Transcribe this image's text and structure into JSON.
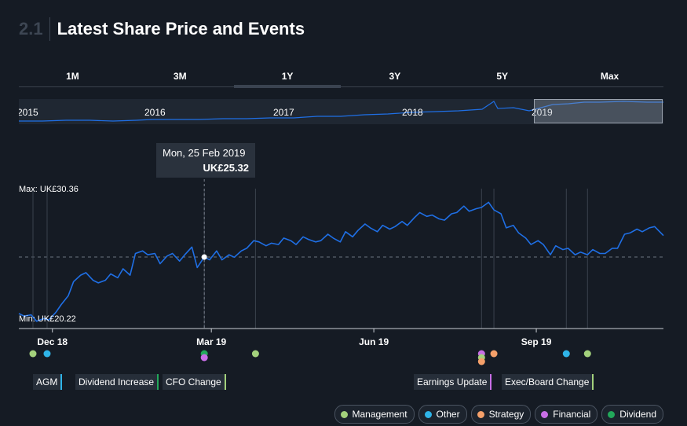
{
  "header": {
    "number": "2.1",
    "title": "Latest Share Price and Events"
  },
  "range_tabs": [
    "1M",
    "3M",
    "1Y",
    "3Y",
    "5Y",
    "Max"
  ],
  "active_tab": "1Y",
  "navigator": {
    "years": [
      "2015",
      "2016",
      "2017",
      "2018",
      "2019"
    ]
  },
  "tooltip": {
    "date": "Mon, 25 Feb 2019",
    "price": "UK£25.32"
  },
  "axis": {
    "max_label": "Max: UK£30.36",
    "min_label": "Min: UK£20.22"
  },
  "colors": {
    "line": "#1f6fe5",
    "Management": "#a3d17c",
    "Other": "#2fb4e8",
    "Strategy": "#f5a06a",
    "Financial": "#c86ee6",
    "Dividend": "#22a85a"
  },
  "events": [
    {
      "label": "AGM",
      "category": "Other"
    },
    {
      "label": "Dividend Increase",
      "category": "Dividend"
    },
    {
      "label": "CFO Change",
      "category": "Management"
    },
    {
      "label": "Earnings Update",
      "category": "Financial"
    },
    {
      "label": "Exec/Board Change",
      "category": "Management"
    }
  ],
  "event_markers": [
    {
      "date": "2018-11-20",
      "category": "Management"
    },
    {
      "date": "2018-11-28",
      "category": "Other"
    },
    {
      "date": "2019-02-25",
      "category": "Dividend"
    },
    {
      "date": "2019-02-25",
      "category": "Financial"
    },
    {
      "date": "2019-03-26",
      "category": "Management"
    },
    {
      "date": "2019-08-01",
      "category": "Financial"
    },
    {
      "date": "2019-08-01",
      "category": "Management"
    },
    {
      "date": "2019-08-01",
      "category": "Strategy"
    },
    {
      "date": "2019-08-08",
      "category": "Strategy"
    },
    {
      "date": "2019-09-18",
      "category": "Other"
    },
    {
      "date": "2019-09-30",
      "category": "Management"
    }
  ],
  "legend": [
    "Management",
    "Other",
    "Strategy",
    "Financial",
    "Dividend"
  ],
  "chart_data": {
    "type": "line",
    "x_range": [
      "2018-11-12",
      "2019-11-12"
    ],
    "ylim": [
      20.22,
      30.36
    ],
    "x_ticks": [
      {
        "date": "2018-12-01",
        "label": "Dec 18"
      },
      {
        "date": "2019-03-01",
        "label": "Mar 19"
      },
      {
        "date": "2019-06-01",
        "label": "Jun 19"
      },
      {
        "date": "2019-09-01",
        "label": "Sep 19"
      }
    ],
    "reference_price": 25.32,
    "highlight": {
      "date": "2019-02-25",
      "value": 25.32
    },
    "series": [
      {
        "x": [
          "2018-11-12",
          "2018-11-15",
          "2018-11-19",
          "2018-11-22",
          "2018-11-26",
          "2018-11-29",
          "2018-12-03",
          "2018-12-06",
          "2018-12-10",
          "2018-12-13",
          "2018-12-17",
          "2018-12-20",
          "2018-12-24",
          "2018-12-27",
          "2018-12-31",
          "2019-01-03",
          "2019-01-07",
          "2019-01-10",
          "2019-01-14",
          "2019-01-17",
          "2019-01-21",
          "2019-01-24",
          "2019-01-28",
          "2019-01-31",
          "2019-02-04",
          "2019-02-07",
          "2019-02-11",
          "2019-02-14",
          "2019-02-18",
          "2019-02-21",
          "2019-02-25",
          "2019-02-28",
          "2019-03-04",
          "2019-03-07",
          "2019-03-11",
          "2019-03-14",
          "2019-03-18",
          "2019-03-21",
          "2019-03-25",
          "2019-03-28",
          "2019-04-01",
          "2019-04-04",
          "2019-04-08",
          "2019-04-11",
          "2019-04-15",
          "2019-04-18",
          "2019-04-22",
          "2019-04-25",
          "2019-04-29",
          "2019-05-02",
          "2019-05-06",
          "2019-05-09",
          "2019-05-13",
          "2019-05-16",
          "2019-05-20",
          "2019-05-23",
          "2019-05-27",
          "2019-05-30",
          "2019-06-03",
          "2019-06-06",
          "2019-06-10",
          "2019-06-13",
          "2019-06-17",
          "2019-06-20",
          "2019-06-24",
          "2019-06-27",
          "2019-07-01",
          "2019-07-04",
          "2019-07-08",
          "2019-07-11",
          "2019-07-15",
          "2019-07-18",
          "2019-07-22",
          "2019-07-25",
          "2019-07-29",
          "2019-08-01",
          "2019-08-05",
          "2019-08-08",
          "2019-08-12",
          "2019-08-15",
          "2019-08-19",
          "2019-08-22",
          "2019-08-26",
          "2019-08-29",
          "2019-09-02",
          "2019-09-05",
          "2019-09-09",
          "2019-09-12",
          "2019-09-16",
          "2019-09-19",
          "2019-09-23",
          "2019-09-26",
          "2019-09-30",
          "2019-10-03",
          "2019-10-07",
          "2019-10-10",
          "2019-10-14",
          "2019-10-17",
          "2019-10-21",
          "2019-10-24",
          "2019-10-28",
          "2019-10-31",
          "2019-11-04",
          "2019-11-07",
          "2019-11-12"
        ],
        "y": [
          20.9,
          20.7,
          20.8,
          20.3,
          20.5,
          20.4,
          21.0,
          21.6,
          22.3,
          23.4,
          23.9,
          24.1,
          23.5,
          23.3,
          23.5,
          24.0,
          23.7,
          24.4,
          23.9,
          25.6,
          25.8,
          25.5,
          25.6,
          24.8,
          25.4,
          25.6,
          25.0,
          25.5,
          26.1,
          24.5,
          25.32,
          25.1,
          25.8,
          25.1,
          25.5,
          25.3,
          25.8,
          26.0,
          26.6,
          26.5,
          26.2,
          26.4,
          26.3,
          26.8,
          26.6,
          26.3,
          26.9,
          26.7,
          26.5,
          26.6,
          27.1,
          26.8,
          26.5,
          27.3,
          26.9,
          27.4,
          27.9,
          27.6,
          27.3,
          27.8,
          27.5,
          27.7,
          28.1,
          27.8,
          28.4,
          28.8,
          28.5,
          28.6,
          28.3,
          28.2,
          28.7,
          28.8,
          29.3,
          28.9,
          29.1,
          29.2,
          29.6,
          29.0,
          28.7,
          27.6,
          27.8,
          27.2,
          26.8,
          26.3,
          26.6,
          26.3,
          25.5,
          26.2,
          25.9,
          26.0,
          25.5,
          25.7,
          25.5,
          25.9,
          25.6,
          25.6,
          26.0,
          26.0,
          27.1,
          27.2,
          27.5,
          27.3,
          27.6,
          27.7,
          27.0
        ]
      }
    ]
  }
}
